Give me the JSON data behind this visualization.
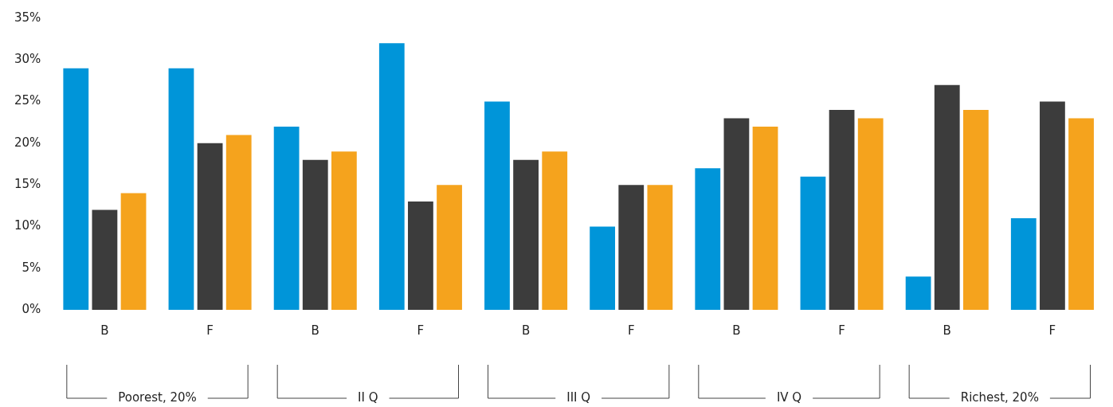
{
  "chart_data": {
    "type": "bar",
    "categories": [
      "B",
      "F",
      "B",
      "F",
      "B",
      "F",
      "B",
      "F",
      "B",
      "F"
    ],
    "series": [
      {
        "color": "#0095d9",
        "values": [
          29,
          29,
          22,
          32,
          25,
          10,
          17,
          16,
          4,
          11
        ]
      },
      {
        "color": "#3c3c3c",
        "values": [
          12,
          20,
          18,
          13,
          18,
          15,
          23,
          24,
          27,
          25
        ]
      },
      {
        "color": "#f5a31d",
        "values": [
          14,
          21,
          19,
          15,
          19,
          15,
          22,
          23,
          24,
          23
        ]
      }
    ],
    "ylim": [
      0,
      35
    ],
    "yticks": [
      {
        "value": 0,
        "label": "0%"
      },
      {
        "value": 5,
        "label": "5%"
      },
      {
        "value": 10,
        "label": "10%"
      },
      {
        "value": 15,
        "label": "15%"
      },
      {
        "value": 20,
        "label": "20%"
      },
      {
        "value": 25,
        "label": "25%"
      },
      {
        "value": 30,
        "label": "30%"
      },
      {
        "value": 35,
        "label": "35%"
      }
    ],
    "grid": false,
    "legend": false,
    "annotations": [
      "Poorest, 20%",
      "II Q",
      "III Q",
      "IV Q",
      "Richest, 20%"
    ]
  }
}
